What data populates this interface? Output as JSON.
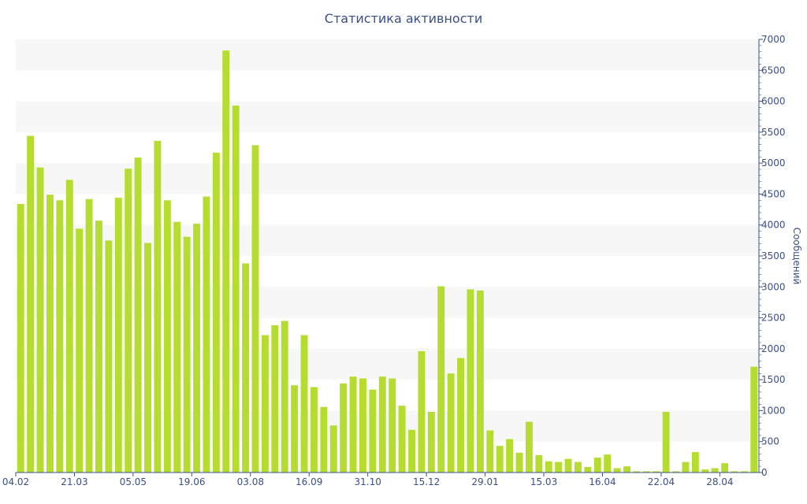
{
  "chart_data": {
    "type": "bar",
    "title": "Статистика активности",
    "ylabel": "Сообщений",
    "xlabel": "",
    "ylim": [
      0,
      7000
    ],
    "y_ticks": [
      0,
      500,
      1000,
      1500,
      2000,
      2500,
      3000,
      3500,
      4000,
      4500,
      5000,
      5500,
      6000,
      6500,
      7000
    ],
    "x_tick_labels": [
      {
        "index": 0,
        "label": "04.02"
      },
      {
        "index": 6,
        "label": "21.03"
      },
      {
        "index": 12,
        "label": "05.05"
      },
      {
        "index": 18,
        "label": "19.06"
      },
      {
        "index": 24,
        "label": "03.08"
      },
      {
        "index": 30,
        "label": "16.09"
      },
      {
        "index": 36,
        "label": "31.10"
      },
      {
        "index": 42,
        "label": "15.12"
      },
      {
        "index": 48,
        "label": "29.01"
      },
      {
        "index": 54,
        "label": "15.03"
      },
      {
        "index": 60,
        "label": "16.04"
      },
      {
        "index": 66,
        "label": "22.04"
      },
      {
        "index": 72,
        "label": "28.04"
      }
    ],
    "grid": true,
    "y_axis_position": "right",
    "bar_color": "#b5dd2f",
    "band_color": "#f7f7f7",
    "axis_color": "#3a4f8a",
    "values": [
      4340,
      5440,
      4930,
      4490,
      4400,
      4730,
      3940,
      4420,
      4070,
      3750,
      4440,
      4910,
      5090,
      3710,
      5360,
      4400,
      4050,
      3810,
      4020,
      4460,
      5170,
      6820,
      5930,
      3380,
      5290,
      2220,
      2380,
      2450,
      1410,
      2220,
      1380,
      1060,
      760,
      1440,
      1550,
      1520,
      1340,
      1550,
      1520,
      1080,
      690,
      1960,
      980,
      3010,
      1600,
      1850,
      2960,
      2940,
      680,
      430,
      540,
      320,
      820,
      280,
      180,
      170,
      220,
      170,
      90,
      240,
      290,
      70,
      100,
      20,
      20,
      20,
      980,
      20,
      170,
      330,
      50,
      70,
      150,
      20,
      20,
      1710
    ]
  }
}
